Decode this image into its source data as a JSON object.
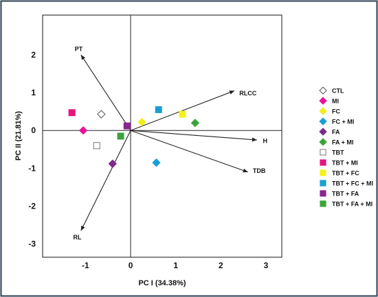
{
  "chart_data": {
    "type": "scatter",
    "title": "",
    "xlabel": "PC I (34.38%)",
    "ylabel": "PC II (21.81%)",
    "xlim": [
      -1.95,
      3.35
    ],
    "ylim": [
      -3.35,
      3.05
    ],
    "xticks": [
      -1,
      0,
      1,
      2,
      3
    ],
    "yticks": [
      2,
      1,
      0,
      -1,
      -2,
      -3
    ],
    "grid": false,
    "legend_position": "right",
    "series": [
      {
        "name": "CTL",
        "marker": "diamond",
        "filled": false,
        "color": "#555555",
        "x": -0.65,
        "y": 0.43
      },
      {
        "name": "MI",
        "marker": "diamond",
        "filled": true,
        "color": "#e8139a",
        "x": -1.05,
        "y": 0.0
      },
      {
        "name": "FC",
        "marker": "diamond",
        "filled": true,
        "color": "#f2ee1c",
        "x": 0.25,
        "y": 0.22
      },
      {
        "name": "FC + MI",
        "marker": "diamond",
        "filled": true,
        "color": "#1a9fd4",
        "x": 0.57,
        "y": -0.85
      },
      {
        "name": "FA",
        "marker": "diamond",
        "filled": true,
        "color": "#7b2a8b",
        "x": -0.4,
        "y": -0.88
      },
      {
        "name": "FA + MI",
        "marker": "diamond",
        "filled": true,
        "color": "#3ca33a",
        "x": 1.43,
        "y": 0.2
      },
      {
        "name": "TBT",
        "marker": "square",
        "filled": false,
        "color": "#777777",
        "x": -0.75,
        "y": -0.4
      },
      {
        "name": "TBT + MI",
        "marker": "square",
        "filled": true,
        "color": "#e8137f",
        "x": -1.3,
        "y": 0.47
      },
      {
        "name": "TBT + FC",
        "marker": "square",
        "filled": true,
        "color": "#f4f21a",
        "x": 1.15,
        "y": 0.43
      },
      {
        "name": "TBT + FC + MI",
        "marker": "square",
        "filled": true,
        "color": "#1a9fd4",
        "x": 0.62,
        "y": 0.55
      },
      {
        "name": "TBT + FA",
        "marker": "square",
        "filled": true,
        "color": "#8b2591",
        "x": -0.08,
        "y": 0.12
      },
      {
        "name": "TBT + FA + MI",
        "marker": "square",
        "filled": true,
        "color": "#3ca33a",
        "x": -0.22,
        "y": -0.15
      }
    ],
    "vectors": [
      {
        "label": "PT",
        "x": -1.1,
        "y": 2.0
      },
      {
        "label": "RLCC",
        "x": 2.3,
        "y": 1.05
      },
      {
        "label": "H",
        "x": 2.8,
        "y": -0.25
      },
      {
        "label": "TDB",
        "x": 2.6,
        "y": -1.1
      },
      {
        "label": "RL",
        "x": -1.1,
        "y": -2.65
      }
    ],
    "vector_labels": [
      {
        "label": "PT",
        "x": -1.15,
        "y": 2.15
      },
      {
        "label": "RLCC",
        "x": 2.6,
        "y": 0.98
      },
      {
        "label": "H",
        "x": 2.98,
        "y": -0.28
      },
      {
        "label": "TDB",
        "x": 2.85,
        "y": -1.07
      },
      {
        "label": "RL",
        "x": -1.18,
        "y": -2.82
      }
    ]
  }
}
